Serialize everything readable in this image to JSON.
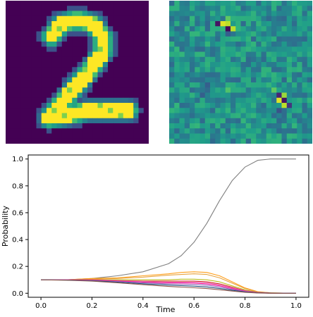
{
  "chart_data": [
    {
      "type": "heatmap",
      "colormap": "viridis",
      "grid_size": [
        28,
        28
      ],
      "content": "handwritten digit image",
      "title": "",
      "xlabel": "",
      "ylabel": ""
    },
    {
      "type": "heatmap",
      "colormap": "viridis",
      "grid_size": [
        28,
        28
      ],
      "content": "pixel saliency/gradient map",
      "title": "",
      "xlabel": "",
      "ylabel": ""
    },
    {
      "type": "line",
      "title": "",
      "xlabel": "Time",
      "ylabel": "Probability",
      "xlim": [
        -0.05,
        1.05
      ],
      "ylim": [
        -0.03,
        1.03
      ],
      "xticks": [
        "0.0",
        "0.2",
        "0.4",
        "0.6",
        "0.8",
        "1.0"
      ],
      "yticks": [
        "0.0",
        "0.2",
        "0.4",
        "0.6",
        "0.8",
        "1.0"
      ],
      "grid": false,
      "legend": "none",
      "x": [
        0.0,
        0.1,
        0.2,
        0.3,
        0.4,
        0.5,
        0.55,
        0.6,
        0.65,
        0.7,
        0.75,
        0.8,
        0.85,
        0.9,
        0.95,
        1.0
      ],
      "series": [
        {
          "color": "#808080",
          "values": [
            0.1,
            0.1,
            0.11,
            0.13,
            0.16,
            0.22,
            0.28,
            0.38,
            0.52,
            0.69,
            0.84,
            0.94,
            0.99,
            1.0,
            1.0,
            1.0
          ]
        },
        {
          "color": "#ff9f1c",
          "values": [
            0.1,
            0.1,
            0.11,
            0.115,
            0.13,
            0.145,
            0.155,
            0.16,
            0.155,
            0.13,
            0.085,
            0.04,
            0.012,
            0.003,
            0.001,
            0.0
          ]
        },
        {
          "color": "#e8a33d",
          "values": [
            0.1,
            0.1,
            0.105,
            0.11,
            0.12,
            0.135,
            0.14,
            0.145,
            0.14,
            0.115,
            0.075,
            0.035,
            0.01,
            0.003,
            0.001,
            0.0
          ]
        },
        {
          "color": "#bcbd22",
          "values": [
            0.1,
            0.1,
            0.1,
            0.1,
            0.1,
            0.1,
            0.105,
            0.105,
            0.1,
            0.085,
            0.055,
            0.025,
            0.008,
            0.002,
            0.0,
            0.0
          ]
        },
        {
          "color": "#d62728",
          "values": [
            0.1,
            0.1,
            0.1,
            0.095,
            0.09,
            0.09,
            0.09,
            0.09,
            0.085,
            0.07,
            0.045,
            0.02,
            0.006,
            0.002,
            0.0,
            0.0
          ]
        },
        {
          "color": "#e377c2",
          "values": [
            0.1,
            0.1,
            0.098,
            0.093,
            0.087,
            0.083,
            0.083,
            0.083,
            0.078,
            0.063,
            0.04,
            0.018,
            0.005,
            0.001,
            0.0,
            0.0
          ]
        },
        {
          "color": "#ff1493",
          "values": [
            0.1,
            0.1,
            0.097,
            0.09,
            0.083,
            0.078,
            0.077,
            0.076,
            0.07,
            0.056,
            0.035,
            0.015,
            0.004,
            0.001,
            0.0,
            0.0
          ]
        },
        {
          "color": "#9467bd",
          "values": [
            0.1,
            0.099,
            0.095,
            0.087,
            0.078,
            0.07,
            0.068,
            0.066,
            0.06,
            0.047,
            0.029,
            0.013,
            0.003,
            0.001,
            0.0,
            0.0
          ]
        },
        {
          "color": "#1f4e79",
          "values": [
            0.1,
            0.098,
            0.093,
            0.083,
            0.071,
            0.061,
            0.057,
            0.053,
            0.047,
            0.036,
            0.022,
            0.01,
            0.003,
            0.001,
            0.0,
            0.0
          ]
        },
        {
          "color": "#8c564b",
          "values": [
            0.1,
            0.097,
            0.09,
            0.078,
            0.064,
            0.051,
            0.046,
            0.041,
            0.035,
            0.026,
            0.016,
            0.007,
            0.002,
            0.0,
            0.0,
            0.0
          ]
        }
      ]
    }
  ]
}
